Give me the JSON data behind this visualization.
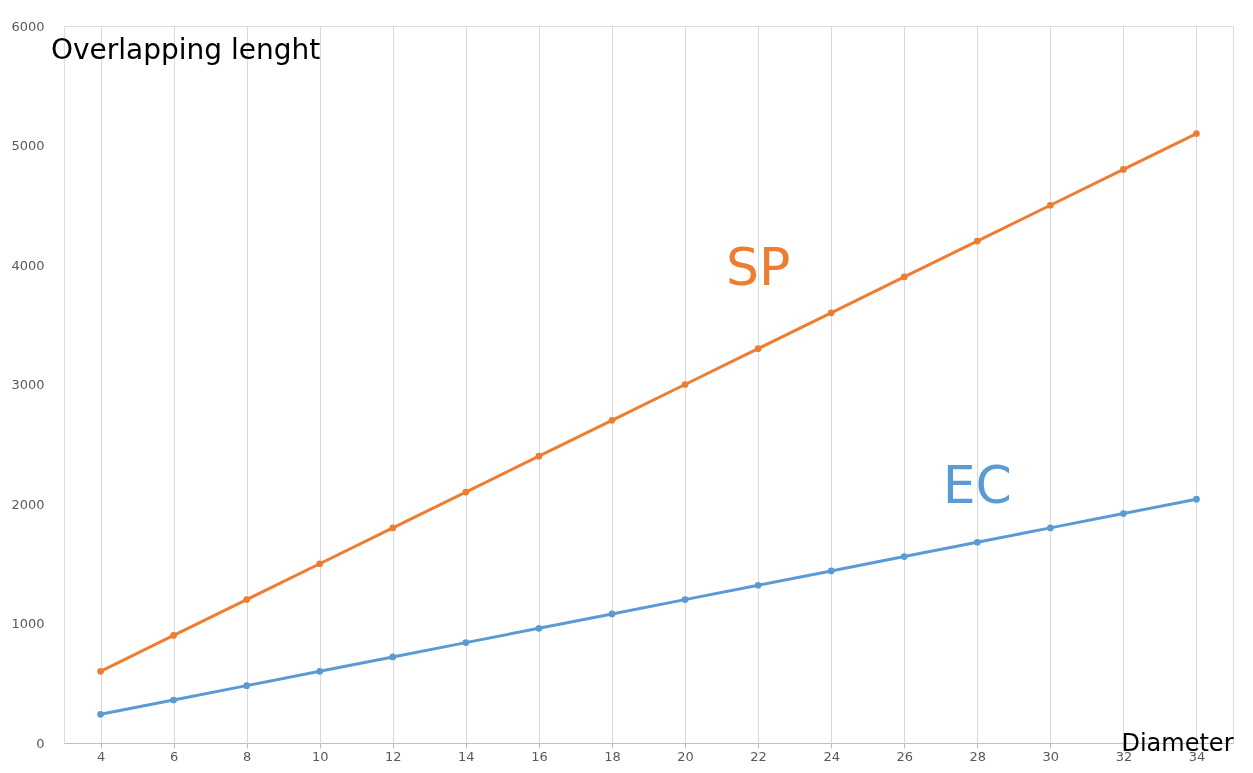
{
  "chart_data": {
    "type": "line",
    "title": "Overlapping lenght",
    "xlabel": "Diameter",
    "categories": [
      "4",
      "6",
      "8",
      "10",
      "12",
      "14",
      "16",
      "18",
      "20",
      "22",
      "24",
      "26",
      "28",
      "30",
      "32",
      "34"
    ],
    "series": [
      {
        "name": "SP",
        "color": "#ed7d31",
        "values": [
          600,
          900,
          1200,
          1500,
          1800,
          2100,
          2400,
          2700,
          3000,
          3300,
          3600,
          3900,
          4200,
          4500,
          4800,
          5100
        ]
      },
      {
        "name": "EC",
        "color": "#5b9bd5",
        "values": [
          240,
          360,
          480,
          600,
          720,
          840,
          960,
          1080,
          1200,
          1320,
          1440,
          1560,
          1680,
          1800,
          1920,
          2040
        ]
      }
    ],
    "ylim": [
      0,
      6000
    ],
    "yticks": [
      0,
      1000,
      2000,
      3000,
      4000,
      5000,
      6000
    ],
    "grid": "x",
    "marker": "circle",
    "line_style": "solid"
  }
}
